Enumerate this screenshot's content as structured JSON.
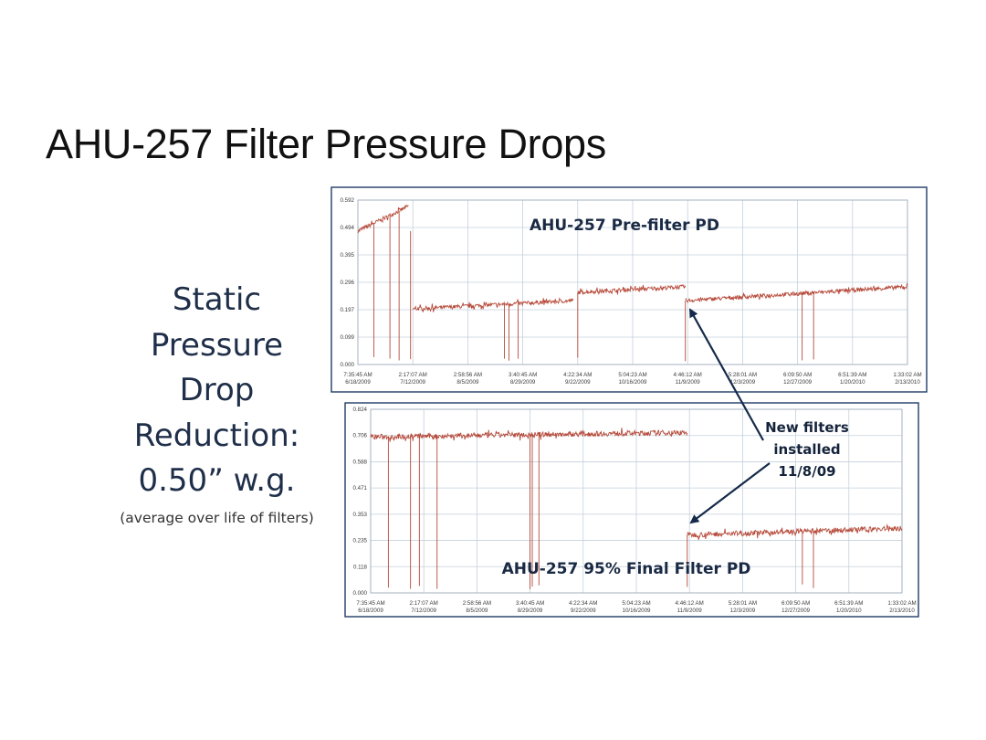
{
  "slide": {
    "title": "AHU-257 Filter Pressure Drops",
    "side_text": {
      "lines": [
        "Static",
        "Pressure",
        "Drop",
        "Reduction:",
        "0.50” w.g."
      ],
      "note": "(average over life of filters)"
    },
    "annotation": {
      "lines": [
        "New filters",
        "installed",
        "11/8/09"
      ]
    }
  },
  "colors": {
    "series": "#b64a3a",
    "border": "#1f3c66",
    "grid": "#c5d0dc",
    "arrow": "#152a4a"
  },
  "chart_data": [
    {
      "type": "line",
      "title": "AHU-257 Pre-filter PD",
      "y_ticks": [
        "0.592",
        "0.494",
        "0.395",
        "0.296",
        "0.197",
        "0.099",
        "0.000"
      ],
      "ylim": [
        0,
        0.592
      ],
      "x_ticks": [
        {
          "time": "7:35:45 AM",
          "date": "6/18/2009"
        },
        {
          "time": "2:17:07 AM",
          "date": "7/12/2009"
        },
        {
          "time": "2:58:56 AM",
          "date": "8/5/2009"
        },
        {
          "time": "3:40:45 AM",
          "date": "8/29/2009"
        },
        {
          "time": "4:22:34 AM",
          "date": "9/22/2009"
        },
        {
          "time": "5:04:23 AM",
          "date": "10/16/2009"
        },
        {
          "time": "4:46:12 AM",
          "date": "11/9/2009"
        },
        {
          "time": "5:28:01 AM",
          "date": "12/3/2009"
        },
        {
          "time": "6:09:50 AM",
          "date": "12/27/2009"
        },
        {
          "time": "6:51:39 AM",
          "date": "1/20/2010"
        },
        {
          "time": "1:33:02 AM",
          "date": "2/13/2010"
        }
      ],
      "series": [
        {
          "segments": [
            {
              "x_start": "6/18/2009",
              "x_end": "7/10/2009",
              "y_start": 0.48,
              "y_end": 0.57
            },
            {
              "x_start": "7/12/2009",
              "x_end": "9/20/2009",
              "y_start": 0.2,
              "y_end": 0.23
            },
            {
              "x_start": "9/22/2009",
              "x_end": "11/8/2009",
              "y_start": 0.26,
              "y_end": 0.28
            },
            {
              "x_start": "11/8/2009",
              "x_end": "2/13/2010",
              "y_start": 0.23,
              "y_end": 0.28
            }
          ],
          "dropouts": [
            "6/25/2009",
            "7/2/2009",
            "7/6/2009",
            "7/11/2009",
            "8/21/2009",
            "8/23/2009",
            "8/27/2009",
            "9/22/2009",
            "11/8/2009",
            "12/29/2009",
            "1/3/2010"
          ]
        }
      ]
    },
    {
      "type": "line",
      "title": "AHU-257 95% Final Filter PD",
      "y_ticks": [
        "0.824",
        "0.706",
        "0.588",
        "0.471",
        "0.353",
        "0.235",
        "0.118",
        "0.000"
      ],
      "ylim": [
        0,
        0.824
      ],
      "x_ticks": [
        {
          "time": "7:35:45 AM",
          "date": "6/18/2009"
        },
        {
          "time": "2:17:07 AM",
          "date": "7/12/2009"
        },
        {
          "time": "2:58:56 AM",
          "date": "8/5/2009"
        },
        {
          "time": "3:40:45 AM",
          "date": "8/29/2009"
        },
        {
          "time": "4:22:34 AM",
          "date": "9/22/2009"
        },
        {
          "time": "5:04:23 AM",
          "date": "10/16/2009"
        },
        {
          "time": "4:46:12 AM",
          "date": "11/9/2009"
        },
        {
          "time": "5:28:01 AM",
          "date": "12/3/2009"
        },
        {
          "time": "6:09:50 AM",
          "date": "12/27/2009"
        },
        {
          "time": "6:51:39 AM",
          "date": "1/20/2010"
        },
        {
          "time": "1:33:02 AM",
          "date": "2/13/2010"
        }
      ],
      "series": [
        {
          "segments": [
            {
              "x_start": "6/18/2009",
              "x_end": "11/8/2009",
              "y_start": 0.7,
              "y_end": 0.72
            },
            {
              "x_start": "11/8/2009",
              "x_end": "2/13/2010",
              "y_start": 0.26,
              "y_end": 0.29
            }
          ],
          "dropouts": [
            "6/26/2009",
            "7/6/2009",
            "7/10/2009",
            "7/18/2009",
            "8/29/2009",
            "8/30/2009",
            "9/2/2009",
            "11/8/2009",
            "12/30/2009",
            "1/4/2010"
          ]
        }
      ]
    }
  ]
}
